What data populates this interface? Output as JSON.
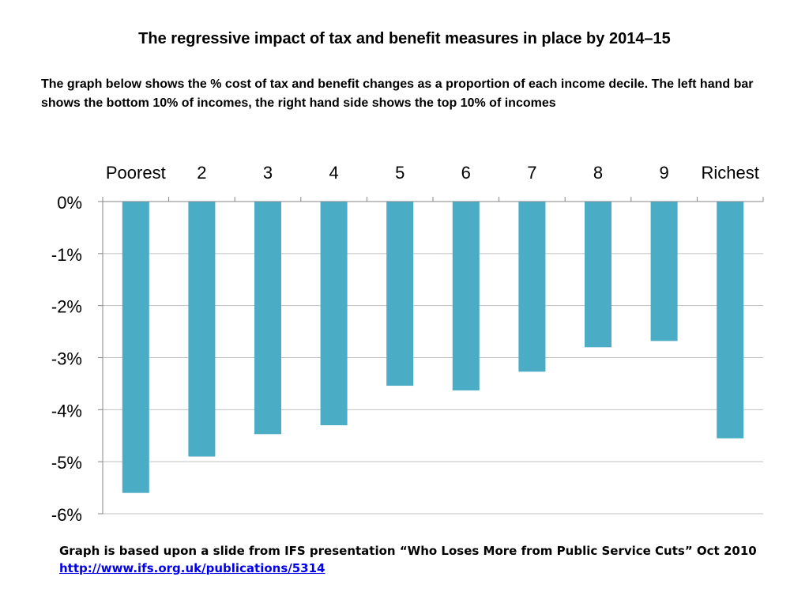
{
  "title": "The regressive impact of tax and benefit measures in place by 2014–15",
  "subtitle": "The graph below shows the % cost of tax and benefit changes as a proportion of each income decile. The left hand bar shows the bottom 10% of incomes, the right hand side shows the top 10% of incomes",
  "footer": {
    "text": "Graph is based upon a slide from IFS presentation “Who Loses More from Public Service Cuts” Oct 2010",
    "link": "http://www.ifs.org.uk/publications/5314"
  },
  "chart_data": {
    "type": "bar",
    "categories": [
      "Poorest",
      "2",
      "3",
      "4",
      "5",
      "6",
      "7",
      "8",
      "9",
      "Richest"
    ],
    "values": [
      -5.6,
      -4.9,
      -4.47,
      -4.3,
      -3.54,
      -3.63,
      -3.27,
      -2.8,
      -2.68,
      -4.55
    ],
    "y_ticks": [
      "0%",
      "-1%",
      "-2%",
      "-3%",
      "-4%",
      "-5%",
      "-6%"
    ],
    "ylim": [
      -6,
      0
    ],
    "x_axis_position": "top",
    "grid": true,
    "bar_color": "#4bacc6",
    "grid_color": "#bfbfbf"
  }
}
